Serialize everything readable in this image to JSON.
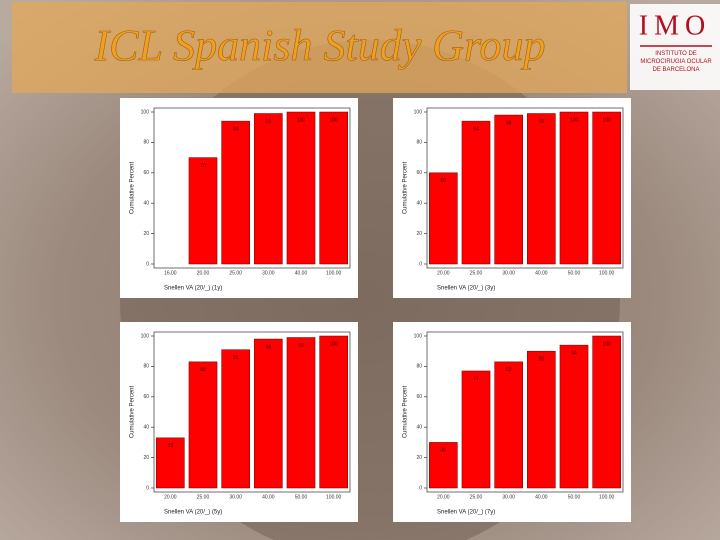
{
  "slide": {
    "title": "ICL Spanish Study Group",
    "logo": "IMO",
    "logo_subtitle": "INSTITUTO DE MICROCIRUGIA OCULAR DE BARCELONA"
  },
  "chart_data": [
    {
      "type": "bar",
      "categories": [
        "16.00",
        "20.00",
        "25.00",
        "30.00",
        "40.00",
        "100.00"
      ],
      "values": [
        null,
        70,
        94,
        99,
        100,
        100
      ],
      "color": "#ff0000",
      "ylim": [
        0,
        100
      ],
      "yticks": [
        0,
        20,
        40,
        60,
        80,
        100
      ],
      "x_label": "Snellen VA (20/_) (1y)",
      "y_label": "Cumulative Percent"
    },
    {
      "type": "bar",
      "categories": [
        "20.00",
        "25.00",
        "30.00",
        "40.00",
        "50.00",
        "100.00"
      ],
      "values": [
        60,
        94,
        98,
        99,
        100,
        100
      ],
      "color": "#ff0000",
      "ylim": [
        0,
        100
      ],
      "yticks": [
        0,
        20,
        40,
        60,
        80,
        100
      ],
      "x_label": "Snellen VA (20/_) (3y)",
      "y_label": "Cumulative Percent"
    },
    {
      "type": "bar",
      "categories": [
        "20.00",
        "25.00",
        "30.00",
        "40.00",
        "50.00",
        "100.00"
      ],
      "values": [
        33,
        83,
        91,
        98,
        99,
        100
      ],
      "color": "#ff0000",
      "ylim": [
        0,
        100
      ],
      "yticks": [
        0,
        20,
        40,
        60,
        80,
        100
      ],
      "x_label": "Snellen VA (20/_) (5y)",
      "y_label": "Cumulative Percent"
    },
    {
      "type": "bar",
      "categories": [
        "20.00",
        "25.00",
        "30.00",
        "40.00",
        "50.00",
        "100.00"
      ],
      "values": [
        30,
        77,
        83,
        90,
        94,
        100
      ],
      "color": "#ff0000",
      "ylim": [
        0,
        100
      ],
      "yticks": [
        0,
        20,
        40,
        60,
        80,
        100
      ],
      "x_label": "Snellen VA (20/_) (7y)",
      "y_label": "Cumulative Percent"
    }
  ]
}
